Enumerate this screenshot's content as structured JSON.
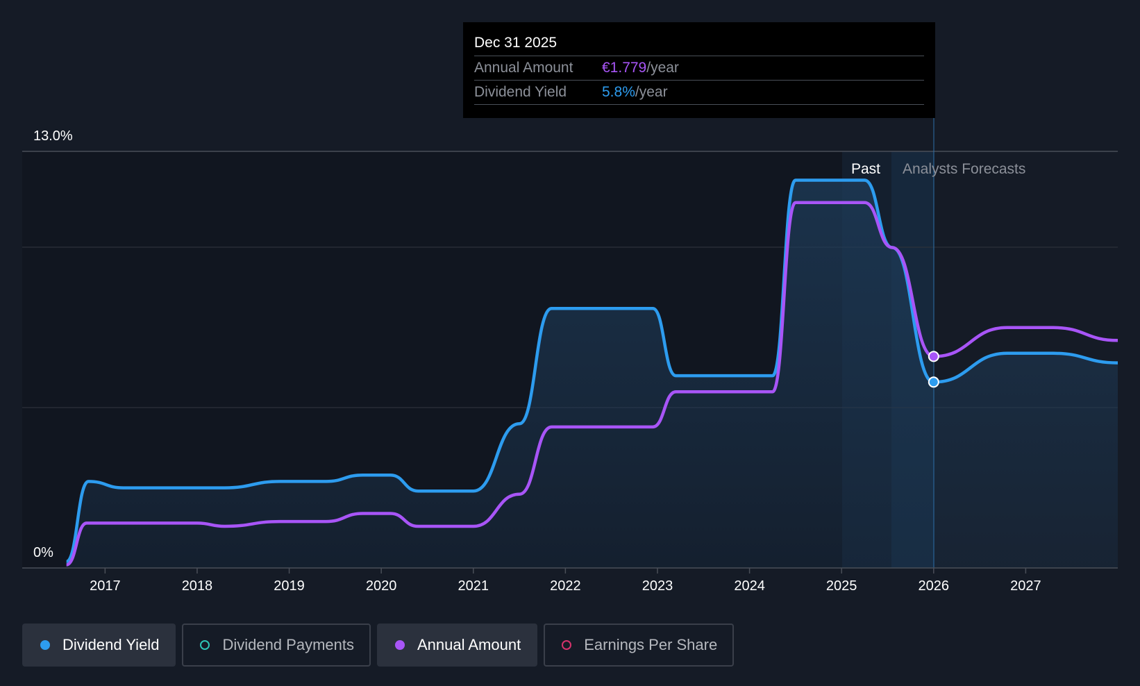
{
  "tooltip": {
    "date": "Dec 31 2025",
    "rows": [
      {
        "label": "Annual Amount",
        "value": "€1.779",
        "unit": "/year",
        "color": "#a855f7"
      },
      {
        "label": "Dividend Yield",
        "value": "5.8%",
        "unit": "/year",
        "color": "#2d9cef"
      }
    ]
  },
  "legend": [
    {
      "label": "Dividend Yield",
      "active": true,
      "filled": true,
      "color": "#2d9cef"
    },
    {
      "label": "Dividend Payments",
      "active": false,
      "filled": false,
      "color": "#2ec4b6"
    },
    {
      "label": "Annual Amount",
      "active": true,
      "filled": true,
      "color": "#a855f7"
    },
    {
      "label": "Earnings Per Share",
      "active": false,
      "filled": false,
      "color": "#d6336c"
    }
  ],
  "chart_data": {
    "type": "line",
    "title": "",
    "xlabel": "",
    "ylabel": "",
    "ylim": [
      0,
      13
    ],
    "y_tick_labels": [
      "0%",
      "13.0%"
    ],
    "x_ticks": [
      "2017",
      "2018",
      "2019",
      "2020",
      "2021",
      "2022",
      "2023",
      "2024",
      "2025",
      "2026",
      "2027"
    ],
    "x_range": [
      2016.1,
      2028.0
    ],
    "regions": {
      "past_label": "Past",
      "forecast_label": "Analysts Forecasts",
      "divider_x": 2026.0
    },
    "grid": true,
    "series": [
      {
        "name": "Dividend Yield",
        "color": "#2d9cef",
        "points": [
          [
            2016.58,
            0.2
          ],
          [
            2016.82,
            2.7
          ],
          [
            2017.2,
            2.5
          ],
          [
            2018.3,
            2.5
          ],
          [
            2018.9,
            2.7
          ],
          [
            2019.4,
            2.7
          ],
          [
            2019.8,
            2.9
          ],
          [
            2020.1,
            2.9
          ],
          [
            2020.4,
            2.4
          ],
          [
            2021.0,
            2.4
          ],
          [
            2021.5,
            4.5
          ],
          [
            2021.85,
            8.1
          ],
          [
            2022.95,
            8.1
          ],
          [
            2023.2,
            6.0
          ],
          [
            2024.25,
            6.0
          ],
          [
            2024.5,
            12.1
          ],
          [
            2025.25,
            12.1
          ],
          [
            2025.55,
            10.0
          ],
          [
            2026.0,
            5.8
          ],
          [
            2026.8,
            6.7
          ],
          [
            2027.3,
            6.7
          ],
          [
            2028.0,
            6.4
          ]
        ]
      },
      {
        "name": "Annual Amount",
        "color": "#a855f7",
        "points": [
          [
            2016.58,
            0.1
          ],
          [
            2016.8,
            1.4
          ],
          [
            2018.0,
            1.4
          ],
          [
            2018.3,
            1.3
          ],
          [
            2018.9,
            1.45
          ],
          [
            2019.4,
            1.45
          ],
          [
            2019.8,
            1.7
          ],
          [
            2020.1,
            1.7
          ],
          [
            2020.4,
            1.3
          ],
          [
            2021.0,
            1.3
          ],
          [
            2021.5,
            2.3
          ],
          [
            2021.85,
            4.4
          ],
          [
            2022.95,
            4.4
          ],
          [
            2023.2,
            5.5
          ],
          [
            2024.25,
            5.5
          ],
          [
            2024.5,
            11.4
          ],
          [
            2025.25,
            11.4
          ],
          [
            2025.55,
            10.0
          ],
          [
            2026.0,
            6.6
          ],
          [
            2026.8,
            7.5
          ],
          [
            2027.3,
            7.5
          ],
          [
            2028.0,
            7.1
          ]
        ]
      }
    ],
    "highlight": {
      "x": 2026.0,
      "values": [
        5.8,
        6.6
      ]
    }
  }
}
